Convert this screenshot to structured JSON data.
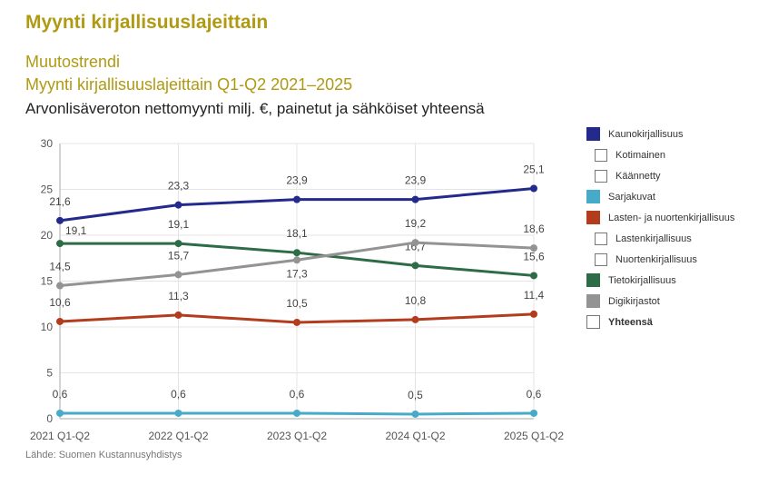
{
  "header": {
    "title": "Myynti kirjallisuuslajeittain",
    "subtitle1": "Muutostrendi",
    "subtitle2": "Myynti kirjallisuuslajeittain Q1-Q2 2021–2025",
    "subtitle3": "Arvonlisäveroton nettomyynti milj. €, painetut ja sähköiset yhteensä"
  },
  "source": "Lähde: Suomen Kustannusyhdistys",
  "legend": [
    {
      "label": "Kaunokirjallisuus",
      "color": "#232a8c",
      "sub": false
    },
    {
      "label": "Kotimainen",
      "sub": true
    },
    {
      "label": "Käännetty",
      "sub": true
    },
    {
      "label": "Sarjakuvat",
      "color": "#46abc8",
      "sub": false
    },
    {
      "label": "Lasten- ja nuortenkirjallisuus",
      "color": "#b43c1e",
      "sub": false
    },
    {
      "label": "Lastenkirjallisuus",
      "sub": true
    },
    {
      "label": "Nuortenkirjallisuus",
      "sub": true
    },
    {
      "label": "Tietokirjallisuus",
      "color": "#2e6b47",
      "sub": false
    },
    {
      "label": "Digikirjastot",
      "color": "#939393",
      "sub": false
    },
    {
      "label": "Yhteensä",
      "sub": false,
      "bold": true
    }
  ],
  "chart_data": {
    "type": "line",
    "categories": [
      "2021 Q1-Q2",
      "2022 Q1-Q2",
      "2023 Q1-Q2",
      "2024 Q1-Q2",
      "2025 Q1-Q2"
    ],
    "ylim": [
      0,
      30
    ],
    "yticks": [
      "0",
      "5",
      "10",
      "15",
      "20",
      "25",
      "30"
    ],
    "grid": true,
    "legend_position": "right",
    "series": [
      {
        "name": "Kaunokirjallisuus",
        "color": "#232a8c",
        "values": [
          21.6,
          23.3,
          23.9,
          23.9,
          25.1
        ],
        "labels": [
          "21,6",
          "23,3",
          "23,9",
          "23,9",
          "25,1"
        ]
      },
      {
        "name": "Sarjakuvat",
        "color": "#46abc8",
        "values": [
          0.6,
          0.6,
          0.6,
          0.5,
          0.6
        ],
        "labels": [
          "0,6",
          "0,6",
          "0,6",
          "0,5",
          "0,6"
        ]
      },
      {
        "name": "Lasten- ja nuortenkirjallisuus",
        "color": "#b43c1e",
        "values": [
          10.6,
          11.3,
          10.5,
          10.8,
          11.4
        ],
        "labels": [
          "10,6",
          "11,3",
          "10,5",
          "10,8",
          "11,4"
        ]
      },
      {
        "name": "Tietokirjallisuus",
        "color": "#2e6b47",
        "values": [
          19.1,
          19.1,
          18.1,
          16.7,
          15.6
        ],
        "labels": [
          "19,1",
          "19,1",
          "18,1",
          "16,7",
          "15,6"
        ]
      },
      {
        "name": "Digikirjastot",
        "color": "#939393",
        "values": [
          14.5,
          15.7,
          17.3,
          19.2,
          18.6
        ],
        "labels": [
          "14,5",
          "15,7",
          "17,3",
          "19,2",
          "18,6"
        ]
      }
    ]
  }
}
